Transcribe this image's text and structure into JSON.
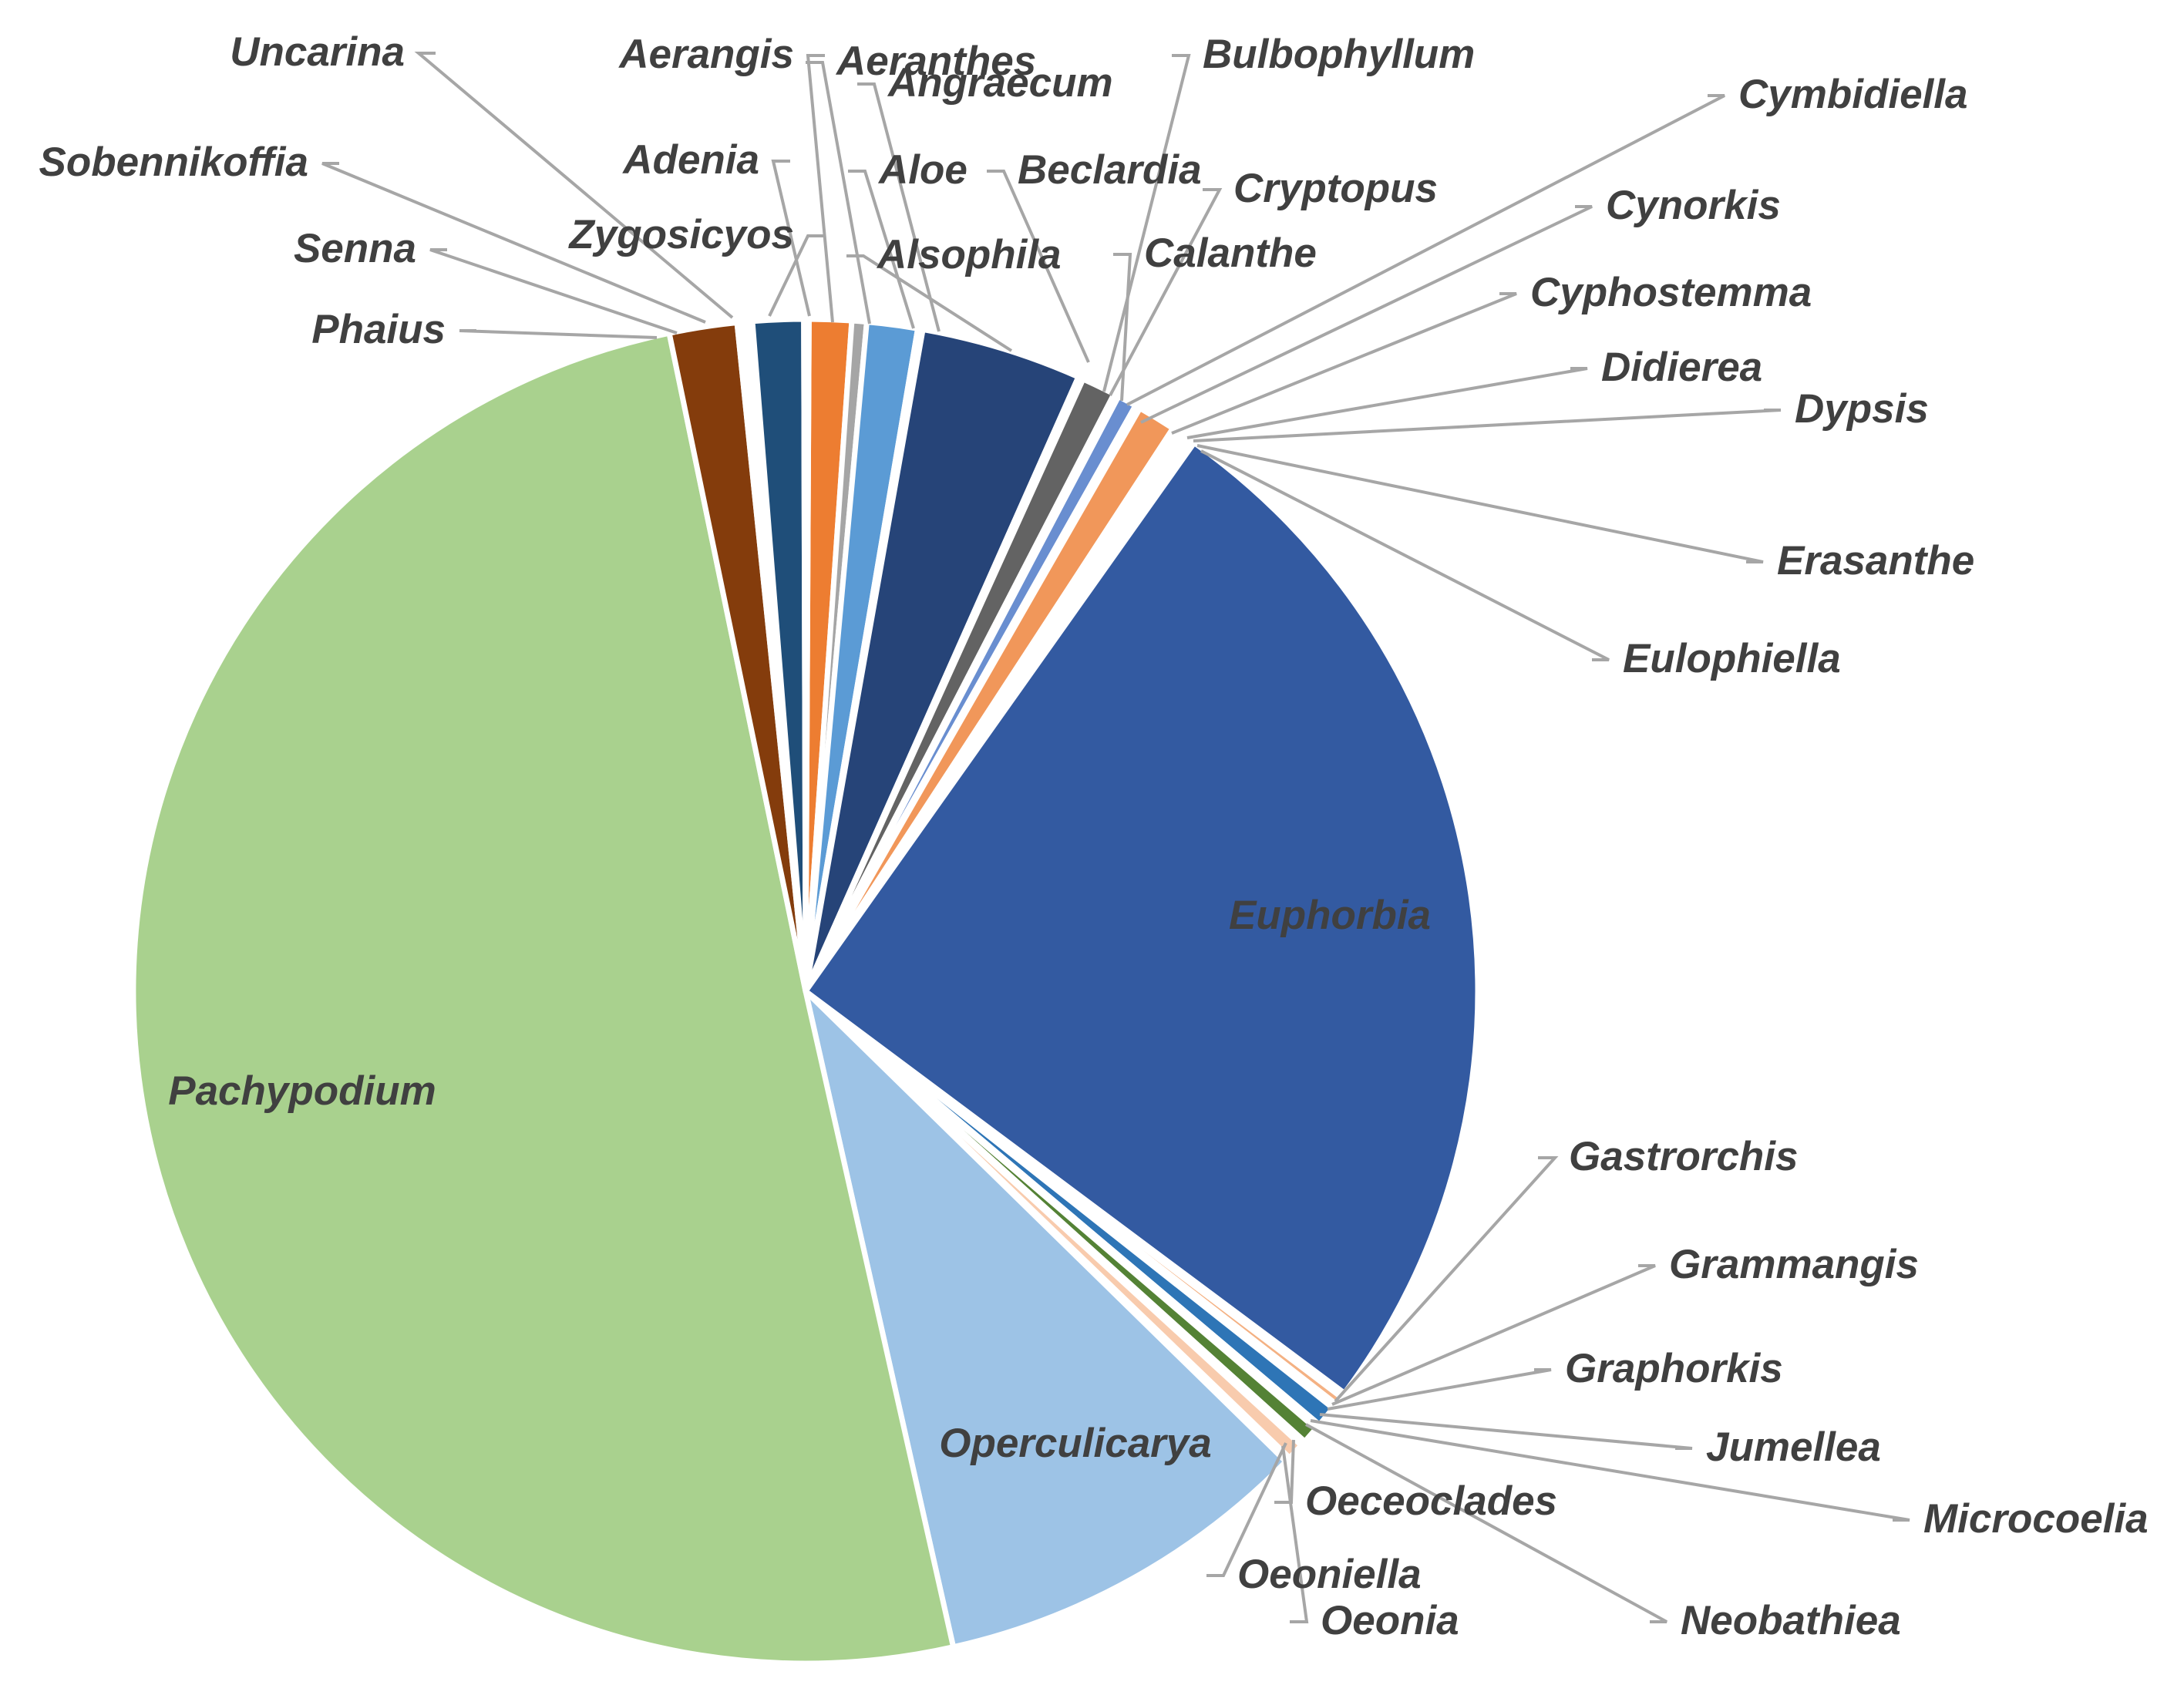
{
  "chart_data": {
    "type": "pie",
    "title": "",
    "slices": [
      {
        "label": "Aerangis",
        "value": 1.0,
        "color": "#ed7d31"
      },
      {
        "label": "Aeranthes",
        "value": 0.35,
        "color": "#a5a5a5"
      },
      {
        "label": "Aloe",
        "value": 1.2,
        "color": "#5b9bd5"
      },
      {
        "label": "Angraecum",
        "value": 0.12,
        "color": "#70ad47"
      },
      {
        "label": "Alsophila",
        "value": 3.8,
        "color": "#264478"
      },
      {
        "label": "Beclardia",
        "value": 0.12,
        "color": "#9e480e"
      },
      {
        "label": "Bulbophyllum",
        "value": 0.8,
        "color": "#636363"
      },
      {
        "label": "Cryptopus",
        "value": 0.12,
        "color": "#997300"
      },
      {
        "label": "Calanthe",
        "value": 0.45,
        "color": "#698ed0"
      },
      {
        "label": "Cymbidiella",
        "value": 0.12,
        "color": "#43682b"
      },
      {
        "label": "Cynorkis",
        "value": 0.9,
        "color": "#f1975a"
      },
      {
        "label": "Cyphostemma",
        "value": 0.12,
        "color": "#b7b7b7"
      },
      {
        "label": "Didierea",
        "value": 0.12,
        "color": "#ffcd33"
      },
      {
        "label": "Dypsis",
        "value": 0.12,
        "color": "#7cafdd"
      },
      {
        "label": "Erasanthe",
        "value": 0.12,
        "color": "#8cc168"
      },
      {
        "label": "Eulophiella",
        "value": 0.12,
        "color": "#c5e0f5"
      },
      {
        "label": "Euphorbia",
        "value": 25.0,
        "color": "#335aa1"
      },
      {
        "label": "Gastrorchis",
        "value": 0.12,
        "color": "#ae5a21"
      },
      {
        "label": "Grammangis",
        "value": 0.2,
        "color": "#f4b183"
      },
      {
        "label": "Graphorkis",
        "value": 0.12,
        "color": "#7f7f7f"
      },
      {
        "label": "Jumellea",
        "value": 0.5,
        "color": "#2e75b6"
      },
      {
        "label": "Microcoelia",
        "value": 0.12,
        "color": "#c9c9c9"
      },
      {
        "label": "Neobathiea",
        "value": 0.4,
        "color": "#548235"
      },
      {
        "label": "Oeceoclades",
        "value": 0.12,
        "color": "#bdd7ee"
      },
      {
        "label": "Oeonia",
        "value": 0.4,
        "color": "#f8cbad"
      },
      {
        "label": "Oeoniella",
        "value": 0.12,
        "color": "#d0cece"
      },
      {
        "label": "Operculicarya",
        "value": 9.0,
        "color": "#9dc3e6"
      },
      {
        "label": "Pachypodium",
        "value": 49.5,
        "color": "#a9d18e"
      },
      {
        "label": "Phaius",
        "value": 1.6,
        "color": "#843c0c"
      },
      {
        "label": "Senna",
        "value": 0.12,
        "color": "#d9d9d9"
      },
      {
        "label": "Sobennikoffia",
        "value": 0.12,
        "color": "#c9c9c9"
      },
      {
        "label": "Uncarina",
        "value": 0.12,
        "color": "#e2efda"
      },
      {
        "label": "Zygosicyos",
        "value": 1.2,
        "color": "#1f4e79"
      },
      {
        "label": "Adenia",
        "value": 0.12,
        "color": "#deebf7"
      }
    ]
  }
}
